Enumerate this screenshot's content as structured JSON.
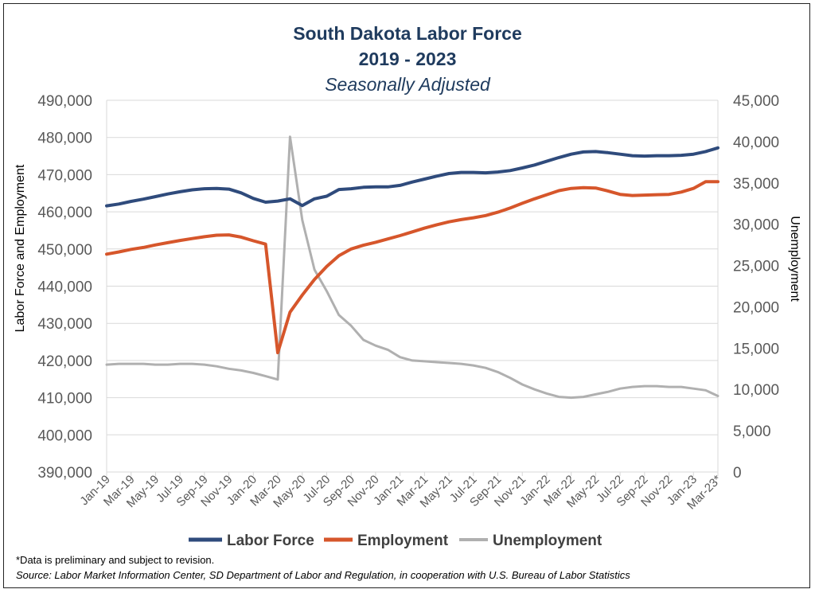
{
  "header": {
    "title_line1": "South Dakota Labor Force",
    "title_line2": "2019 - 2023",
    "subtitle": "Seasonally Adjusted"
  },
  "footer": {
    "footnote": "*Data is preliminary and subject to revision.",
    "source": "Source: Labor Market Information Center, SD Department of Labor and Regulation, in cooperation with U.S. Bureau of Labor Statistics"
  },
  "colors": {
    "labor_force": "#2f4b7c",
    "employment": "#d6562b",
    "unemployment": "#b0b0b0",
    "grid": "#d9d9d9",
    "title": "#1f3b5e"
  },
  "chart_data": {
    "type": "line",
    "title": "South Dakota Labor Force",
    "subtitle": "2019 - 2023 Seasonally Adjusted",
    "ylabel": "Labor  Force and Employment",
    "y2label": "Unemployment",
    "ylim": [
      390000,
      490000
    ],
    "y2lim": [
      0,
      45000
    ],
    "yticks": [
      "390,000",
      "400,000",
      "410,000",
      "420,000",
      "430,000",
      "440,000",
      "450,000",
      "460,000",
      "470,000",
      "480,000",
      "490,000"
    ],
    "y2ticks": [
      "0",
      "5,000",
      "10,000",
      "15,000",
      "20,000",
      "25,000",
      "30,000",
      "35,000",
      "40,000",
      "45,000"
    ],
    "xtick_labels": [
      "Jan-19",
      "Mar-19",
      "May-19",
      "Jul-19",
      "Sep-19",
      "Nov-19",
      "Jan-20",
      "Mar-20",
      "May-20",
      "Jul-20",
      "Sep-20",
      "Nov-20",
      "Jan-21",
      "Mar-21",
      "May-21",
      "Jul-21",
      "Sep-21",
      "Nov-21",
      "Jan-22",
      "Mar-22",
      "May-22",
      "Jul-22",
      "Sep-22",
      "Nov-22",
      "Jan-23",
      "Mar-23*"
    ],
    "legend_position": "bottom",
    "grid": true,
    "x": [
      "Jan-19",
      "Feb-19",
      "Mar-19",
      "Apr-19",
      "May-19",
      "Jun-19",
      "Jul-19",
      "Aug-19",
      "Sep-19",
      "Oct-19",
      "Nov-19",
      "Dec-19",
      "Jan-20",
      "Feb-20",
      "Mar-20",
      "Apr-20",
      "May-20",
      "Jun-20",
      "Jul-20",
      "Aug-20",
      "Sep-20",
      "Oct-20",
      "Nov-20",
      "Dec-20",
      "Jan-21",
      "Feb-21",
      "Mar-21",
      "Apr-21",
      "May-21",
      "Jun-21",
      "Jul-21",
      "Aug-21",
      "Sep-21",
      "Oct-21",
      "Nov-21",
      "Dec-21",
      "Jan-22",
      "Feb-22",
      "Mar-22",
      "Apr-22",
      "May-22",
      "Jun-22",
      "Jul-22",
      "Aug-22",
      "Sep-22",
      "Oct-22",
      "Nov-22",
      "Dec-22",
      "Jan-23",
      "Feb-23",
      "Mar-23*"
    ],
    "series": [
      {
        "name": "Labor Force",
        "axis": "left",
        "values": [
          461600,
          462100,
          462800,
          463400,
          464100,
          464800,
          465400,
          465900,
          466200,
          466300,
          466100,
          465100,
          463600,
          462600,
          462900,
          463500,
          461700,
          463500,
          464200,
          466000,
          466200,
          466600,
          466700,
          466700,
          467100,
          468000,
          468800,
          469600,
          470300,
          470600,
          470600,
          470500,
          470700,
          471100,
          471800,
          472600,
          473600,
          474600,
          475500,
          476100,
          476200,
          475900,
          475500,
          475100,
          475000,
          475100,
          475100,
          475200,
          475500,
          476200,
          477200
        ]
      },
      {
        "name": "Employment",
        "axis": "left",
        "values": [
          448600,
          449200,
          449900,
          450400,
          451100,
          451700,
          452300,
          452800,
          453300,
          453700,
          453800,
          453200,
          452200,
          451300,
          422100,
          433000,
          437600,
          441800,
          445300,
          448200,
          450000,
          451000,
          451800,
          452700,
          453600,
          454600,
          455600,
          456500,
          457300,
          457900,
          458400,
          459000,
          459900,
          461000,
          462300,
          463500,
          464600,
          465700,
          466300,
          466500,
          466400,
          465600,
          464700,
          464400,
          464500,
          464600,
          464700,
          465300,
          466300,
          468100,
          468100
        ]
      },
      {
        "name": "Unemployment",
        "axis": "right",
        "values": [
          13000,
          13100,
          13100,
          13100,
          13000,
          13000,
          13100,
          13100,
          13000,
          12800,
          12500,
          12300,
          12000,
          11600,
          11200,
          40600,
          30500,
          24500,
          21900,
          19000,
          17700,
          16000,
          15300,
          14800,
          13900,
          13500,
          13400,
          13300,
          13200,
          13100,
          12900,
          12600,
          12100,
          11400,
          10600,
          10000,
          9500,
          9100,
          9000,
          9100,
          9400,
          9700,
          10100,
          10300,
          10400,
          10400,
          10300,
          10300,
          10100,
          9900,
          9200
        ]
      }
    ]
  }
}
